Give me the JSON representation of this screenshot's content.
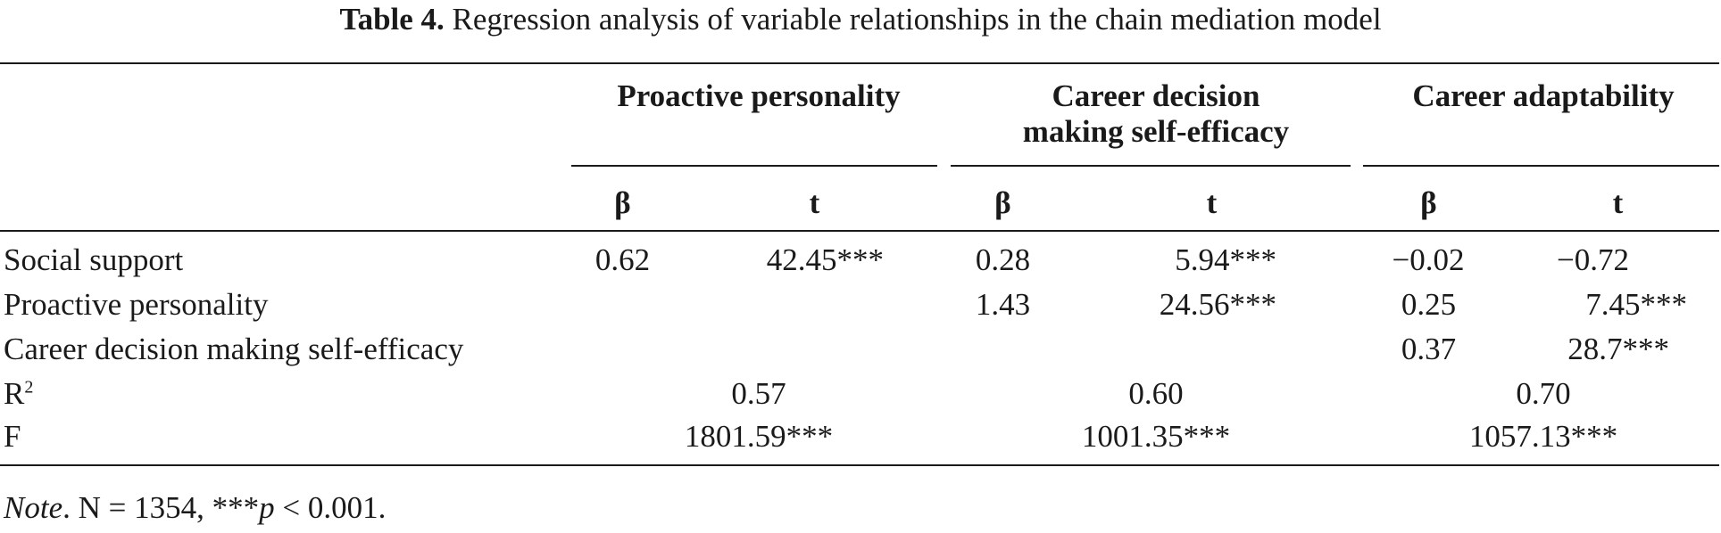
{
  "caption": {
    "label": "Table 4.",
    "text": "Regression analysis of variable relationships in the chain mediation model"
  },
  "columns": {
    "groups": [
      {
        "line1": "Proactive personality",
        "line2": ""
      },
      {
        "line1": "Career decision",
        "line2": "making self-efficacy"
      },
      {
        "line1": "Career adaptability",
        "line2": ""
      }
    ],
    "beta": "β",
    "t": "t"
  },
  "rows": [
    {
      "label": "Social support",
      "cells": [
        "0.62",
        "42.45***",
        "0.28",
        "5.94***",
        "−0.02",
        "−0.72"
      ]
    },
    {
      "label": "Proactive personality",
      "cells": [
        "",
        "",
        "1.43",
        "24.56***",
        "0.25",
        "7.45***"
      ]
    },
    {
      "label": "Career decision making self-efficacy",
      "cells": [
        "",
        "",
        "",
        "",
        "0.37",
        "28.7***"
      ]
    }
  ],
  "summary": {
    "r2": {
      "label": "R",
      "sup": "2",
      "values": [
        "0.57",
        "0.60",
        "0.70"
      ]
    },
    "f": {
      "label": "F",
      "values": [
        "1801.59***",
        "1001.35***",
        "1057.13***"
      ]
    }
  },
  "note": {
    "label": "Note",
    "text_before": ". N = 1354, ***",
    "p": "p",
    "text_after": " < 0.001."
  }
}
